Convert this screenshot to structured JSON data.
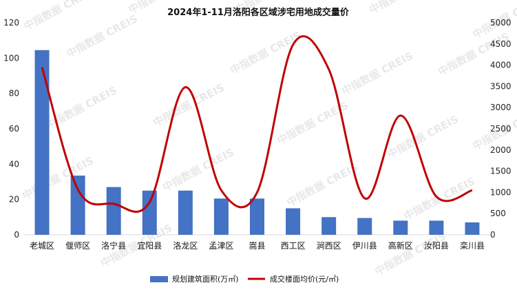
{
  "chart_data": {
    "type": "bar+line",
    "title": "2024年1-11月洛阳各区域涉宅用地成交量价",
    "categories": [
      "老城区",
      "偃师区",
      "洛宁县",
      "宜阳县",
      "洛龙区",
      "孟津区",
      "嵩县",
      "西工区",
      "涧西区",
      "伊川县",
      "高新区",
      "汝阳县",
      "栾川县"
    ],
    "series": [
      {
        "name": "规划建筑面积(万㎡)",
        "type": "bar",
        "axis": "left",
        "color": "#4472C4",
        "values": [
          104.5,
          33.5,
          27,
          25,
          25,
          20.5,
          20.5,
          15,
          10,
          9.5,
          8,
          8,
          7
        ]
      },
      {
        "name": "成交楼面均价(元/㎡)",
        "type": "line",
        "axis": "right",
        "color": "#C00000",
        "values": [
          3950,
          1070,
          730,
          770,
          3480,
          1050,
          1000,
          4480,
          3900,
          860,
          2810,
          900,
          1050
        ]
      }
    ],
    "y_left": {
      "min": 0,
      "max": 120,
      "ticks": [
        0,
        20,
        40,
        60,
        80,
        100,
        120
      ]
    },
    "y_right": {
      "min": 0,
      "max": 5000,
      "ticks": [
        0,
        500,
        1000,
        1500,
        2000,
        2500,
        3000,
        3500,
        4000,
        4500,
        5000
      ]
    },
    "legend_position": "bottom",
    "grid": false
  },
  "watermark": "中指数据 CREIS"
}
